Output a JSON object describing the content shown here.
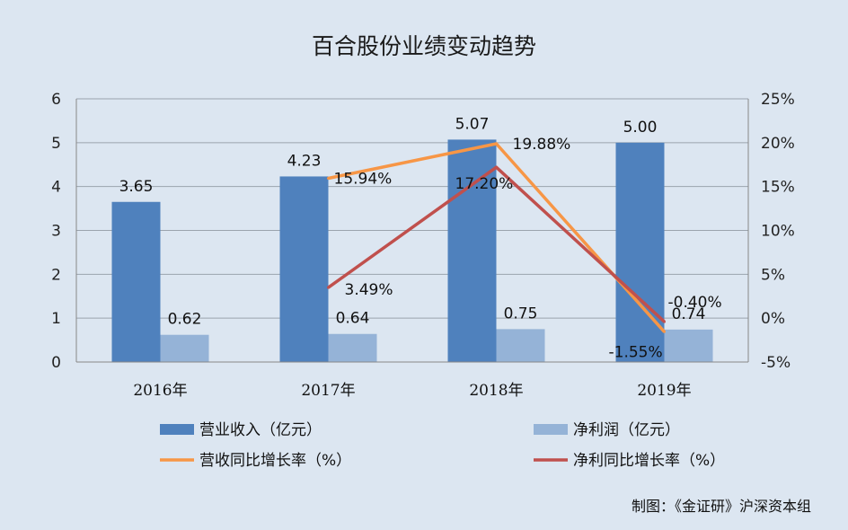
{
  "chart_data": {
    "type": "bar",
    "title": "百合股份业绩变动趋势",
    "categories": [
      "2016年",
      "2017年",
      "2018年",
      "2019年"
    ],
    "y_left": {
      "min": 0,
      "max": 6,
      "ticks": [
        "0",
        "1",
        "2",
        "3",
        "4",
        "5",
        "6"
      ]
    },
    "y_right": {
      "min": -5,
      "max": 25,
      "ticks": [
        "-5%",
        "0%",
        "5%",
        "10%",
        "15%",
        "20%",
        "25%"
      ]
    },
    "grid": true,
    "legend_position": "bottom",
    "series": [
      {
        "name": "营业收入（亿元）",
        "kind": "bar",
        "axis": "left",
        "color": "#4f81bd",
        "values": [
          3.65,
          4.23,
          5.07,
          5.0
        ],
        "labels": [
          "3.65",
          "4.23",
          "5.07",
          "5.00"
        ]
      },
      {
        "name": "净利润（亿元）",
        "kind": "bar",
        "axis": "left",
        "color": "#95b3d7",
        "values": [
          0.62,
          0.64,
          0.75,
          0.74
        ],
        "labels": [
          "0.62",
          "0.64",
          "0.75",
          "0.74"
        ]
      },
      {
        "name": "营收同比增长率（%）",
        "kind": "line",
        "axis": "right",
        "color": "#f79646",
        "values": [
          null,
          15.94,
          19.88,
          -1.55
        ],
        "labels": [
          null,
          "15.94%",
          "19.88%",
          "-1.55%"
        ]
      },
      {
        "name": "净利同比增长率（%）",
        "kind": "line",
        "axis": "right",
        "color": "#c0504d",
        "values": [
          null,
          3.49,
          17.2,
          -0.4
        ],
        "labels": [
          null,
          "3.49%",
          "17.20%",
          "-0.40%"
        ]
      }
    ]
  },
  "credit": "制图：《金证研》沪深资本组"
}
